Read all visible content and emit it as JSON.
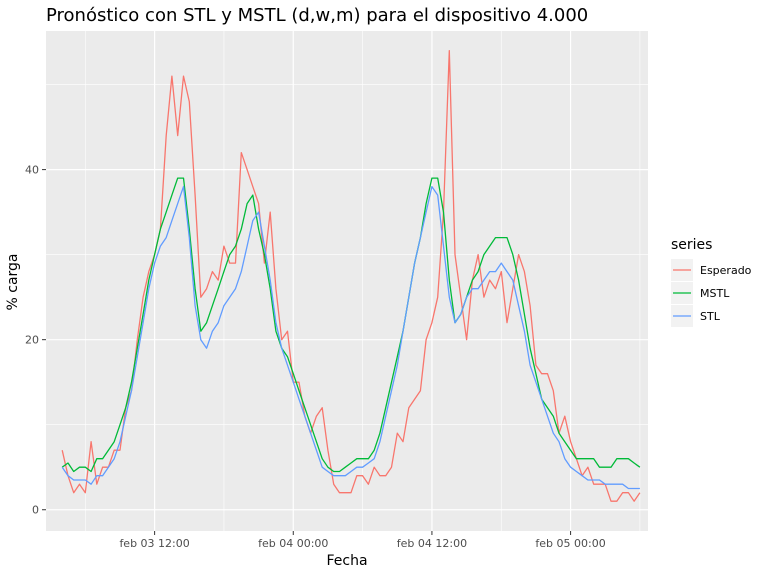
{
  "chart_data": {
    "type": "line",
    "title": "Pronóstico con STL y MSTL (d,w,m) para el dispositivo 4.000",
    "xlabel": "Fecha",
    "ylabel": "% carga",
    "x_unit": "hours",
    "x_ticks": [
      {
        "x": 12,
        "label": "feb 03 12:00"
      },
      {
        "x": 24,
        "label": "feb 04 00:00"
      },
      {
        "x": 36,
        "label": "feb 04 12:00"
      },
      {
        "x": 48,
        "label": "feb 05 00:00"
      }
    ],
    "xlim": [
      2.6,
      54.7
    ],
    "y_ticks": [
      0,
      20,
      40
    ],
    "ylim": [
      -2.5,
      56.3
    ],
    "grid": true,
    "legend": {
      "title": "series",
      "position": "right"
    },
    "series": [
      {
        "name": "Esperado",
        "color": "#F8766D",
        "x": [
          4,
          4.5,
          5,
          5.5,
          6,
          6.5,
          7,
          7.5,
          8,
          8.5,
          9,
          9.5,
          10,
          10.5,
          11,
          11.5,
          12,
          12.5,
          13,
          13.5,
          14,
          14.5,
          15,
          15.5,
          16,
          16.5,
          17,
          17.5,
          18,
          18.5,
          19,
          19.5,
          20,
          20.5,
          21,
          21.5,
          22,
          22.5,
          23,
          23.5,
          24,
          24.5,
          25,
          25.5,
          26,
          26.5,
          27,
          27.5,
          28,
          28.5,
          29,
          29.5,
          30,
          30.5,
          31,
          31.5,
          32,
          32.5,
          33,
          33.5,
          34,
          34.5,
          35,
          35.5,
          36,
          36.5,
          37,
          37.5,
          38,
          38.5,
          39,
          39.5,
          40,
          40.5,
          41,
          41.5,
          42,
          42.5,
          43,
          43.5,
          44,
          44.5,
          45,
          45.5,
          46,
          46.5,
          47,
          47.5,
          48,
          48.5,
          49,
          49.5,
          50,
          50.5,
          51,
          51.5,
          52,
          52.5,
          53,
          53.5,
          54
        ],
        "y": [
          7,
          4,
          2,
          3,
          2,
          8,
          3,
          5,
          5,
          7,
          7,
          12,
          14,
          20,
          25,
          28,
          30,
          33,
          44,
          51,
          44,
          51,
          48,
          37,
          25,
          26,
          28,
          27,
          31,
          29,
          29,
          42,
          40,
          38,
          36,
          29,
          35,
          26,
          20,
          21,
          15,
          15,
          11,
          9,
          11,
          12,
          7,
          3,
          2,
          2,
          2,
          4,
          4,
          3,
          5,
          4,
          4,
          5,
          9,
          8,
          12,
          13,
          14,
          20,
          22,
          25,
          35,
          54,
          30,
          25,
          20,
          27,
          30,
          25,
          27,
          26,
          28,
          22,
          26,
          30,
          28,
          24,
          17,
          16,
          16,
          14,
          9,
          11,
          8,
          6,
          4,
          5,
          3,
          3,
          3,
          1,
          1,
          2,
          2,
          1,
          2
        ]
      },
      {
        "name": "MSTL",
        "color": "#00BA38",
        "x": [
          4,
          4.5,
          5,
          5.5,
          6,
          6.5,
          7,
          7.5,
          8,
          8.5,
          9,
          9.5,
          10,
          10.5,
          11,
          11.5,
          12,
          12.5,
          13,
          13.5,
          14,
          14.5,
          15,
          15.5,
          16,
          16.5,
          17,
          17.5,
          18,
          18.5,
          19,
          19.5,
          20,
          20.5,
          21,
          21.5,
          22,
          22.5,
          23,
          23.5,
          24,
          24.5,
          25,
          25.5,
          26,
          26.5,
          27,
          27.5,
          28,
          28.5,
          29,
          29.5,
          30,
          30.5,
          31,
          31.5,
          32,
          32.5,
          33,
          33.5,
          34,
          34.5,
          35,
          35.5,
          36,
          36.5,
          37,
          37.5,
          38,
          38.5,
          39,
          39.5,
          40,
          40.5,
          41,
          41.5,
          42,
          42.5,
          43,
          43.5,
          44,
          44.5,
          45,
          45.5,
          46,
          46.5,
          47,
          47.5,
          48,
          48.5,
          49,
          49.5,
          50,
          50.5,
          51,
          51.5,
          52,
          52.5,
          53,
          53.5,
          54
        ],
        "y": [
          5,
          5.5,
          4.5,
          5,
          5,
          4.5,
          6,
          6,
          7,
          8,
          10,
          12,
          15,
          19,
          23,
          27,
          30,
          33,
          35,
          37,
          39,
          39,
          33,
          26,
          21,
          22,
          24,
          26,
          28,
          30,
          31,
          33,
          36,
          37,
          33,
          30,
          26,
          21,
          19,
          18,
          16,
          14,
          12,
          10,
          8,
          6,
          5,
          4.5,
          4.5,
          5,
          5.5,
          6,
          6,
          6,
          7,
          9,
          12,
          15,
          18,
          21,
          25,
          29,
          32,
          36,
          39,
          39,
          35,
          27,
          22,
          23,
          25,
          27,
          28,
          30,
          31,
          32,
          32,
          32,
          30,
          27,
          23,
          19,
          16,
          13,
          12,
          11,
          9,
          8,
          7,
          6,
          6,
          6,
          6,
          5,
          5,
          5,
          6,
          6,
          6,
          5.5,
          5
        ]
      },
      {
        "name": "STL",
        "color": "#619CFF",
        "x": [
          4,
          4.5,
          5,
          5.5,
          6,
          6.5,
          7,
          7.5,
          8,
          8.5,
          9,
          9.5,
          10,
          10.5,
          11,
          11.5,
          12,
          12.5,
          13,
          13.5,
          14,
          14.5,
          15,
          15.5,
          16,
          16.5,
          17,
          17.5,
          18,
          18.5,
          19,
          19.5,
          20,
          20.5,
          21,
          21.5,
          22,
          22.5,
          23,
          23.5,
          24,
          24.5,
          25,
          25.5,
          26,
          26.5,
          27,
          27.5,
          28,
          28.5,
          29,
          29.5,
          30,
          30.5,
          31,
          31.5,
          32,
          32.5,
          33,
          33.5,
          34,
          34.5,
          35,
          35.5,
          36,
          36.5,
          37,
          37.5,
          38,
          38.5,
          39,
          39.5,
          40,
          40.5,
          41,
          41.5,
          42,
          42.5,
          43,
          43.5,
          44,
          44.5,
          45,
          45.5,
          46,
          46.5,
          47,
          47.5,
          48,
          48.5,
          49,
          49.5,
          50,
          50.5,
          51,
          51.5,
          52,
          52.5,
          53,
          53.5,
          54
        ],
        "y": [
          5,
          4,
          3.5,
          3.5,
          3.5,
          3,
          4,
          4,
          5,
          6,
          8,
          11,
          14,
          18,
          22,
          26,
          29,
          31,
          32,
          34,
          36,
          38,
          32,
          24,
          20,
          19,
          21,
          22,
          24,
          25,
          26,
          28,
          31,
          34,
          35,
          31,
          27,
          22,
          19,
          17,
          15,
          13,
          11,
          9,
          7,
          5,
          4.5,
          4,
          4,
          4,
          4.5,
          5,
          5,
          5.5,
          6,
          8,
          11,
          14,
          17,
          21,
          25,
          29,
          32,
          35,
          38,
          37,
          31,
          25,
          22,
          23,
          25,
          26,
          26,
          27,
          28,
          28,
          29,
          28,
          27,
          24,
          21,
          17,
          15,
          13,
          11,
          9,
          8,
          6,
          5,
          4.5,
          4,
          3.5,
          3.5,
          3.5,
          3,
          3,
          3,
          3,
          2.5,
          2.5,
          2.5
        ]
      }
    ]
  }
}
